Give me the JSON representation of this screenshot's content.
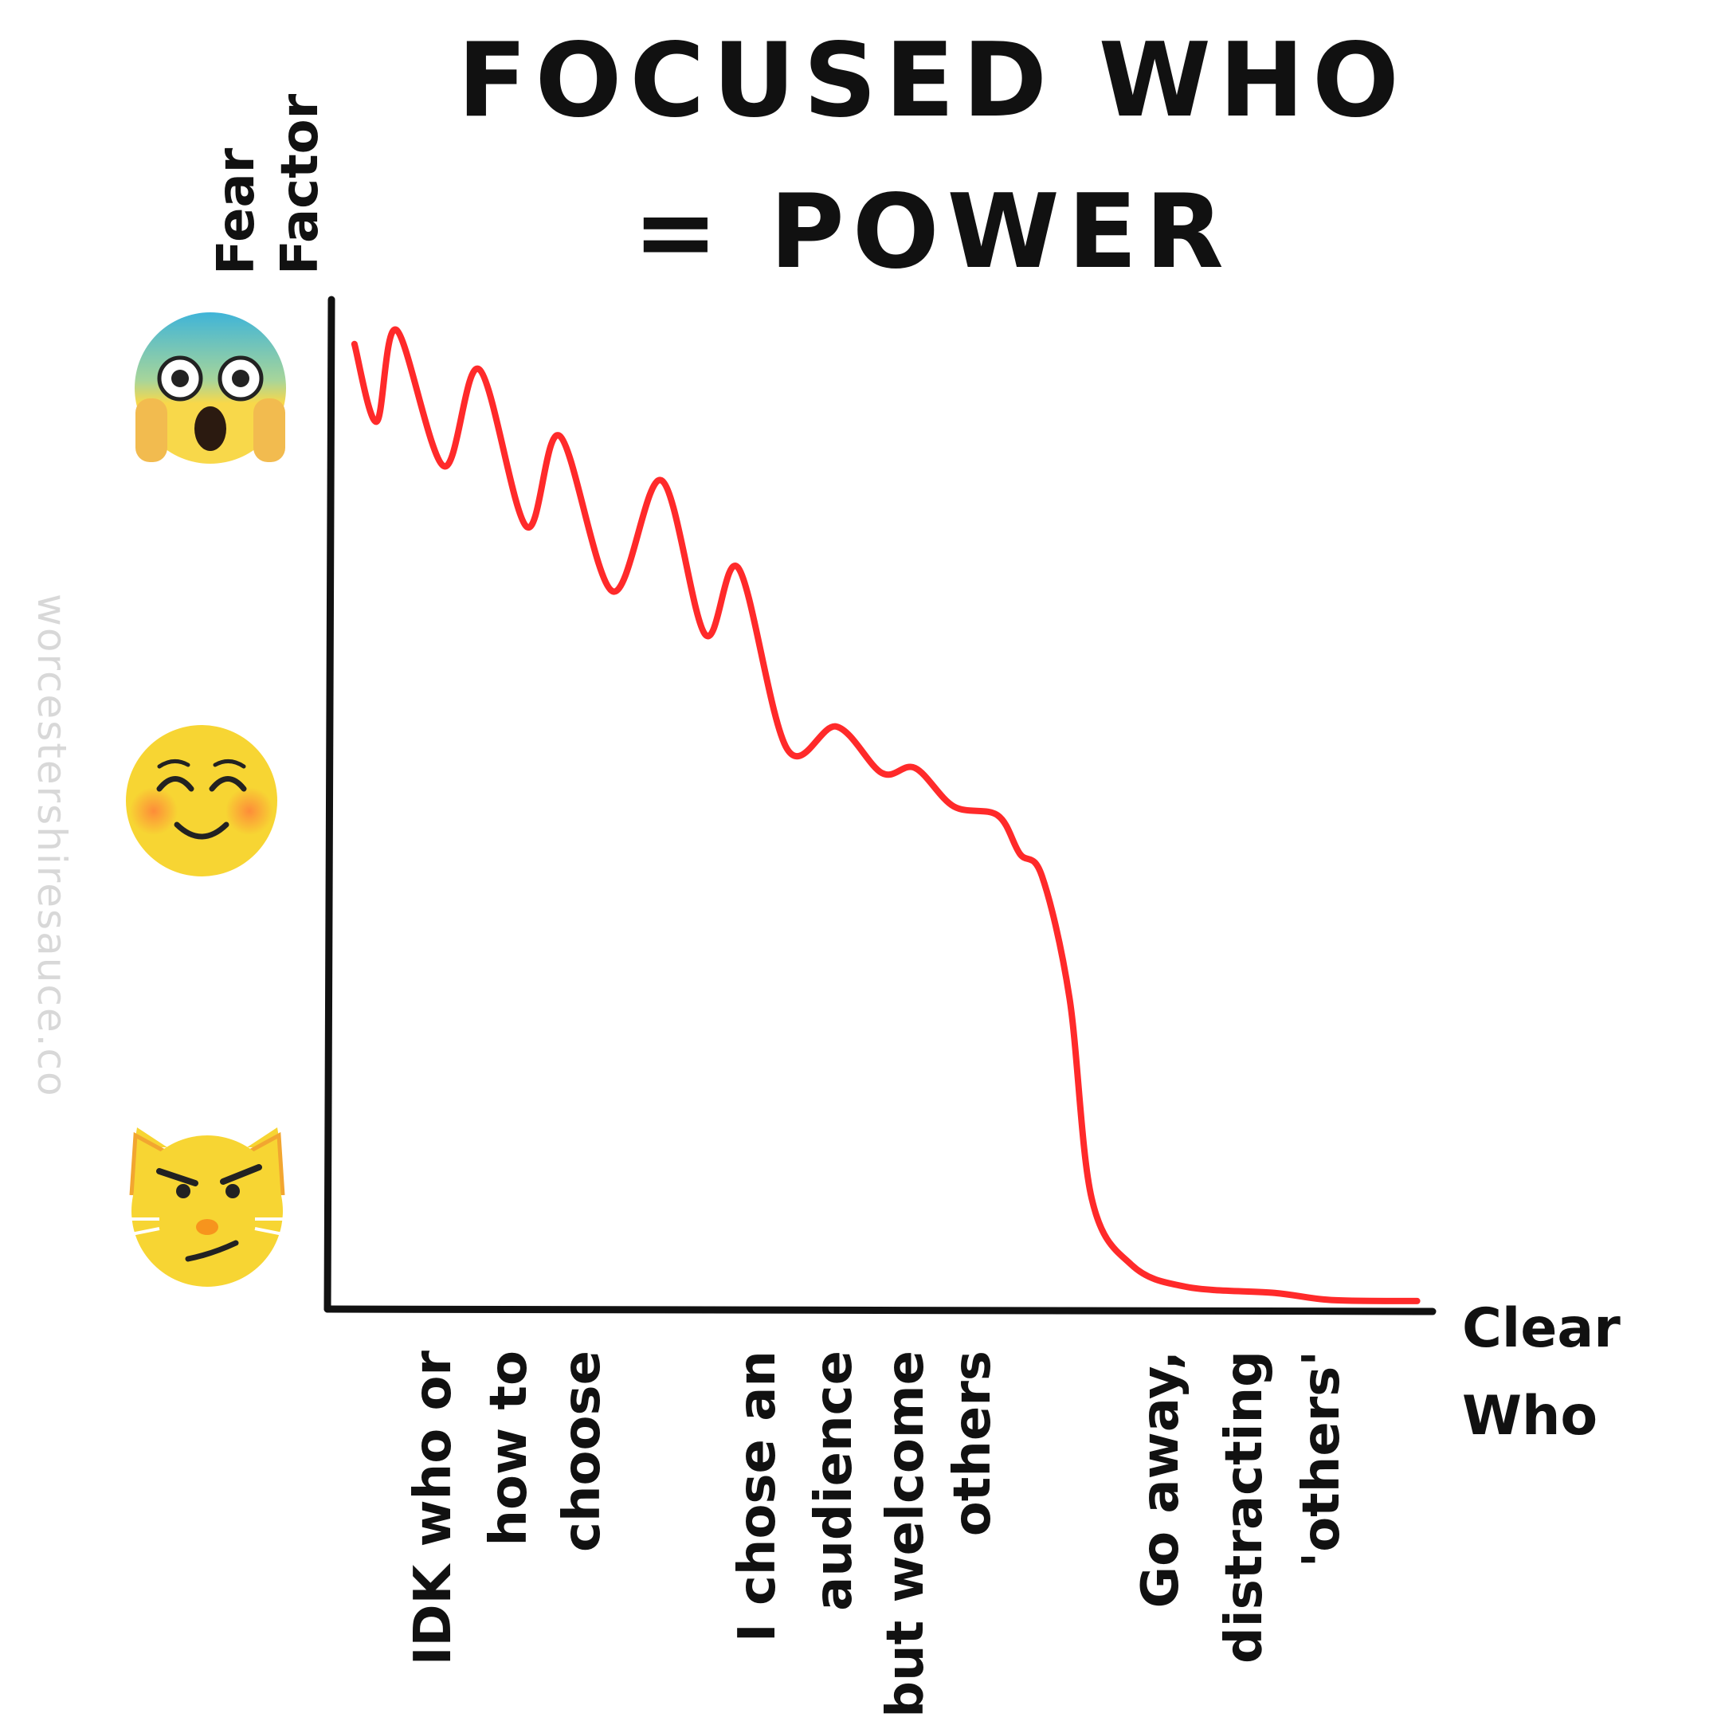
{
  "chart_data": {
    "type": "line",
    "title": [
      "FOCUSED WHO",
      "= POWER"
    ],
    "y_label": [
      "Fear",
      "Factor"
    ],
    "x_label": [
      "Clear",
      "Who"
    ],
    "watermark": "worcestershiresauce.co",
    "annotations": [
      [
        "IDK who or",
        "how to",
        "choose"
      ],
      [
        "I chose an",
        "audience",
        "but welcome",
        "others"
      ],
      [
        "Go away,",
        "distracting",
        "'others'"
      ]
    ],
    "xlim": [
      0,
      100
    ],
    "ylim": [
      0,
      100
    ],
    "color": "#ff2a2a",
    "x": [
      2.3,
      4.3,
      6.1,
      10.4,
      13.6,
      17.9,
      20.9,
      25.7,
      30.1,
      34.1,
      37.1,
      41.5,
      46.0,
      50.1,
      53.1,
      56.6,
      60.6,
      62.6,
      64.6,
      67.1,
      69.1,
      72.7,
      77.7,
      85.7,
      90.8,
      98.6
    ],
    "values": [
      95.6,
      87.9,
      97.0,
      83.5,
      93.1,
      77.5,
      86.5,
      71.1,
      82.1,
      66.8,
      73.4,
      55.5,
      57.7,
      53.1,
      53.6,
      49.8,
      48.9,
      45.1,
      42.9,
      30.8,
      11.0,
      4.4,
      2.2,
      1.6,
      0.9,
      0.8
    ]
  }
}
